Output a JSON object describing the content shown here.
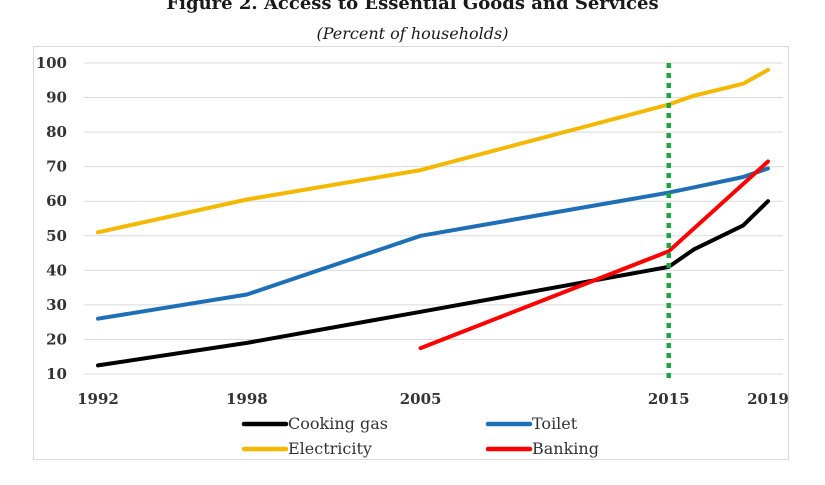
{
  "title": "Figure 2. Access to Essential Goods and Services",
  "subtitle": "(Percent of households)",
  "colors": {
    "cooking_gas": "#000000",
    "toilet": "#1f6fb7",
    "electricity": "#f5b800",
    "banking": "#ff0000",
    "marker": "#1aa640",
    "grid": "#d9d9d9"
  },
  "chart_data": {
    "type": "line",
    "title": "Figure 2. Access to Essential Goods and Services",
    "subtitle": "(Percent of households)",
    "xlabel": "",
    "ylabel": "",
    "x_ticks": [
      1992,
      1998,
      2005,
      2015,
      2019
    ],
    "y_ticks": [
      10,
      20,
      30,
      40,
      50,
      60,
      70,
      80,
      90,
      100
    ],
    "xlim": [
      1992,
      2019
    ],
    "ylim": [
      10,
      100
    ],
    "grid": "horizontal",
    "legend": "bottom",
    "vertical_marker": {
      "x": 2015,
      "style": "dotted",
      "color": "#1aa640"
    },
    "series": [
      {
        "name": "Cooking gas",
        "color": "#000000",
        "x": [
          1992,
          1998,
          2005,
          2015,
          2016,
          2018,
          2019
        ],
        "y": [
          12.5,
          19,
          28,
          41,
          46,
          53,
          60
        ]
      },
      {
        "name": "Toilet",
        "color": "#1f6fb7",
        "x": [
          1992,
          1998,
          2005,
          2015,
          2016,
          2018,
          2019
        ],
        "y": [
          26,
          33,
          50,
          62.5,
          64,
          67,
          69.5
        ]
      },
      {
        "name": "Electricity",
        "color": "#f5b800",
        "x": [
          1992,
          1998,
          2005,
          2015,
          2016,
          2018,
          2019
        ],
        "y": [
          51,
          60.5,
          69,
          88,
          90.5,
          94,
          98
        ]
      },
      {
        "name": "Banking",
        "color": "#ff0000",
        "x": [
          2005,
          2015,
          2019
        ],
        "y": [
          17.5,
          45.5,
          71.5
        ]
      }
    ]
  }
}
